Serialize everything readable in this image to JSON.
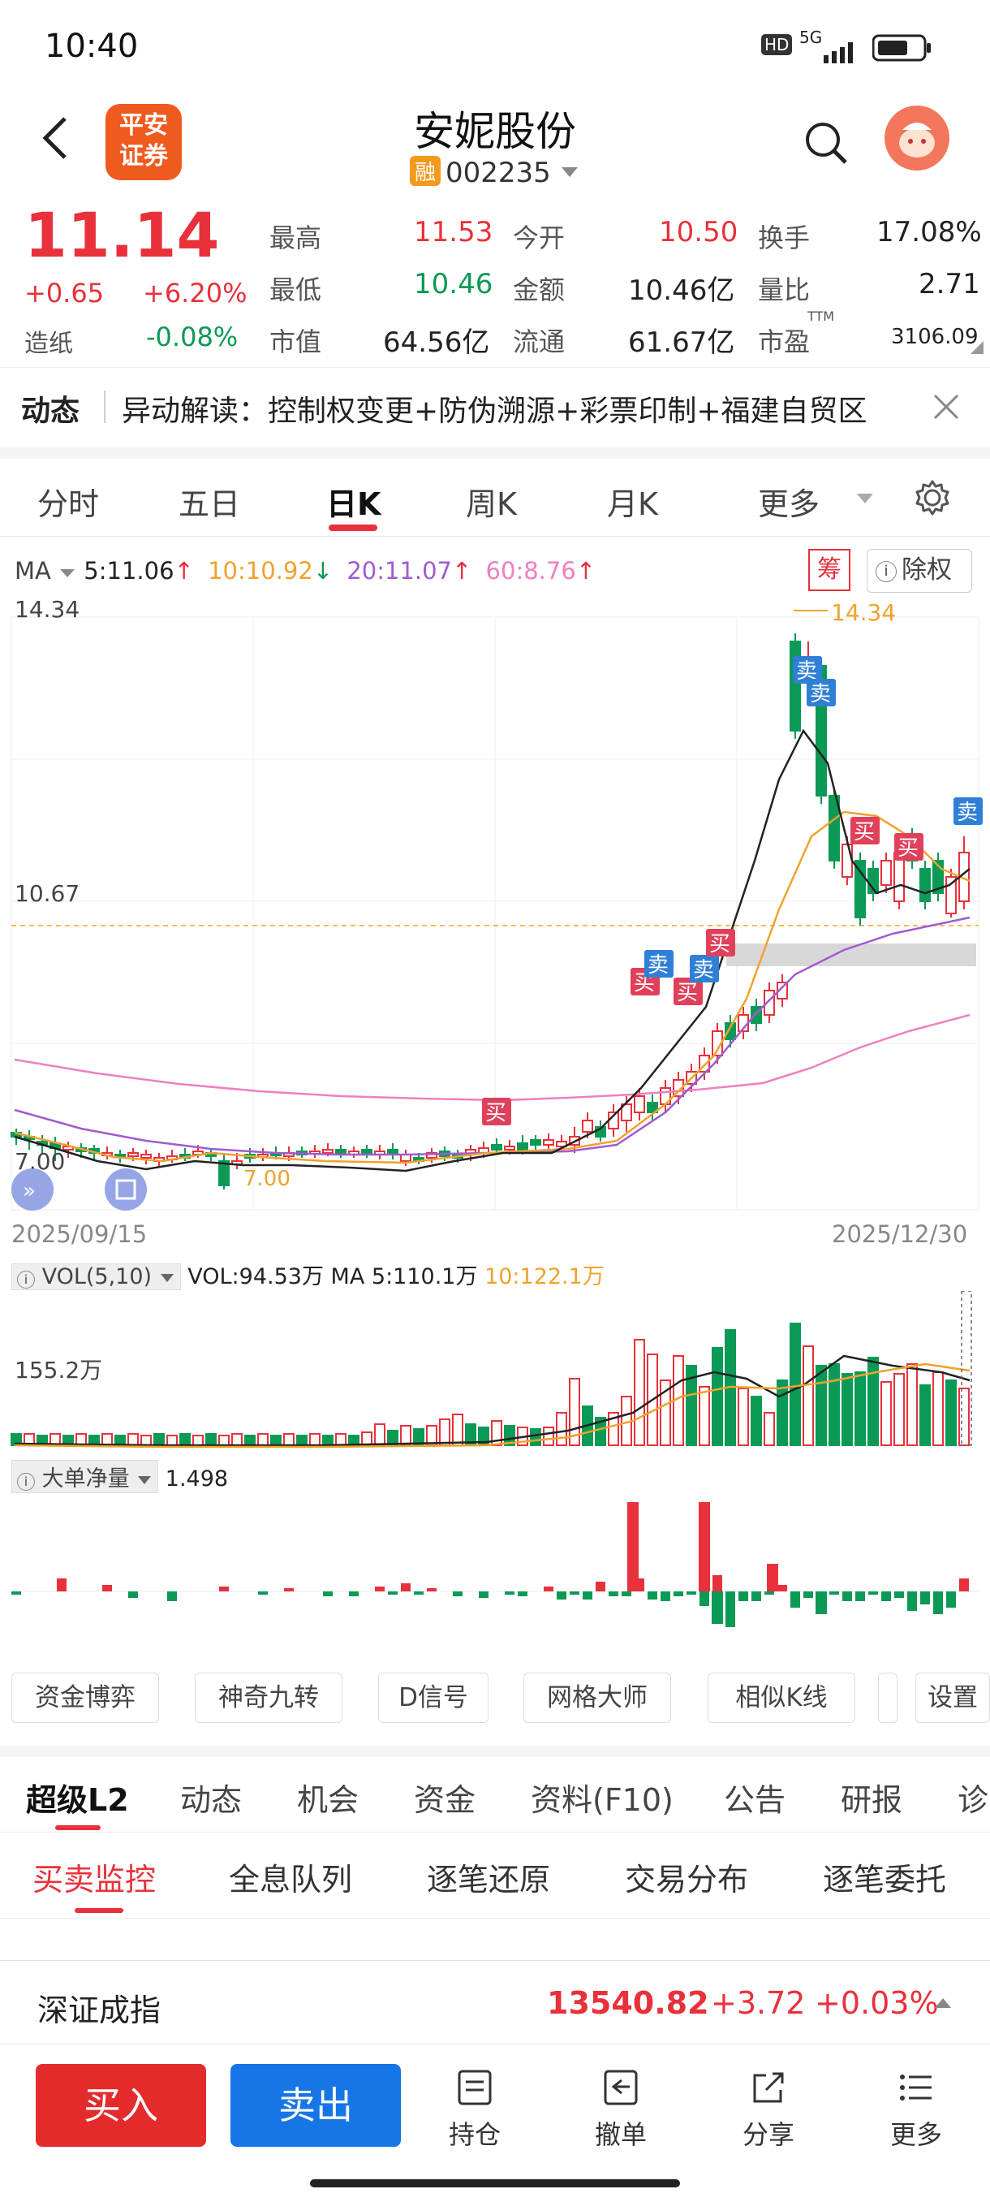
{
  "status_bar": {
    "time": "10:40",
    "hd": "HD",
    "net": "5G"
  },
  "header": {
    "logo_line1": "平安",
    "logo_line2": "证券",
    "stock_name": "安妮股份",
    "margin_badge": "融",
    "stock_code": "002235"
  },
  "quote": {
    "price": "11.14",
    "change": "+0.65",
    "change_pct": "+6.20%",
    "sector_label": "造纸",
    "sector_change": "-0.08%",
    "high_label": "最高",
    "high": "11.53",
    "low_label": "最低",
    "low": "10.46",
    "mcap_label": "市值",
    "mcap": "64.56亿",
    "open_label": "今开",
    "open": "10.50",
    "amount_label": "金额",
    "amount": "10.46亿",
    "float_label": "流通",
    "float": "61.67亿",
    "turnover_label": "换手",
    "turnover": "17.08%",
    "volratio_label": "量比",
    "volratio": "2.71",
    "pe_label": "市盈",
    "pe_sup": "TTM",
    "pe": "3106.09"
  },
  "news": {
    "label": "动态",
    "text": "异动解读：控制权变更+防伪溯源+彩票印制+福建自贸区"
  },
  "chart_tabs": [
    "分时",
    "五日",
    "日K",
    "周K",
    "月K",
    "更多"
  ],
  "active_tab": "日K",
  "ma_legend": {
    "label": "MA",
    "ma5": "5:11.06",
    "ma10": "10:10.92",
    "ma20": "20:11.07",
    "ma60": "60:8.76",
    "colors": {
      "ma5": "#222222",
      "ma10": "#f0a22e",
      "ma20": "#a05bd0",
      "ma60": "#ef7fc0"
    }
  },
  "chart_badges": {
    "chip": "筹",
    "exright": "除权"
  },
  "chart_data": {
    "type": "candlestick",
    "y_max_label": "14.34",
    "y_mid_label": "10.67",
    "y_min_label": "7.00",
    "peak_label": "14.34",
    "low_label": "7.00",
    "date_start": "2025/09/15",
    "date_end": "2025/12/30",
    "buy_label": "买",
    "sell_label": "卖"
  },
  "volume": {
    "legend_box": "VOL(5,10)",
    "vol": "VOL:94.53万",
    "ma5": "MA 5:110.1万",
    "ma10": "10:122.1万",
    "axis_label": "155.2万"
  },
  "bigorder": {
    "legend_box": "大单净量",
    "value": "1.498"
  },
  "tools": [
    "资金博弈",
    "神奇九转",
    "D信号",
    "网格大师",
    "相似K线",
    "设置"
  ],
  "func_tabs": [
    "超级L2",
    "动态",
    "机会",
    "资金",
    "资料(F10)",
    "公告",
    "研报",
    "诊"
  ],
  "sub_tabs": [
    "买卖监控",
    "全息队列",
    "逐笔还原",
    "交易分布",
    "逐笔委托"
  ],
  "index": {
    "name": "深证成指",
    "value": "13540.82",
    "change": "+3.72",
    "pct": "+0.03%"
  },
  "bottom": {
    "buy": "买入",
    "sell": "卖出",
    "hold": "持仓",
    "cancel": "撤单",
    "share": "分享",
    "more": "更多"
  }
}
